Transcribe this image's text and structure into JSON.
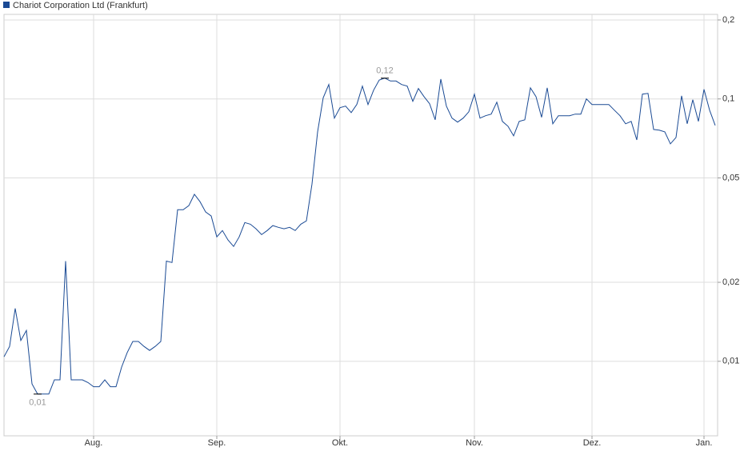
{
  "chart_data": {
    "type": "line",
    "legend": "top-left",
    "log_y": true,
    "grid": true,
    "series": [
      {
        "name": "Chariot Corporation Ltd (Frankfurt)",
        "color": "#1a4a94",
        "values": [
          0.0104,
          0.0114,
          0.0159,
          0.012,
          0.0131,
          0.0082,
          0.0075,
          0.0075,
          0.0075,
          0.0085,
          0.0085,
          0.0241,
          0.0085,
          0.0085,
          0.0085,
          0.0083,
          0.008,
          0.008,
          0.0085,
          0.008,
          0.008,
          0.0095,
          0.0108,
          0.0119,
          0.0119,
          0.0114,
          0.011,
          0.0114,
          0.0119,
          0.0241,
          0.0238,
          0.0378,
          0.0378,
          0.0392,
          0.0433,
          0.0406,
          0.0371,
          0.0358,
          0.0298,
          0.0315,
          0.029,
          0.0274,
          0.0298,
          0.0338,
          0.0333,
          0.032,
          0.0304,
          0.0315,
          0.0329,
          0.0324,
          0.032,
          0.0324,
          0.0315,
          0.0333,
          0.0343,
          0.0474,
          0.0749,
          0.101,
          0.1135,
          0.0845,
          0.0926,
          0.0939,
          0.0887,
          0.0952,
          0.1119,
          0.0952,
          0.108,
          0.118,
          0.12,
          0.117,
          0.117,
          0.1135,
          0.1119,
          0.0979,
          0.1096,
          0.1021,
          0.0959,
          0.0833,
          0.119,
          0.0939,
          0.0845,
          0.0816,
          0.0845,
          0.0893,
          0.1043,
          0.0845,
          0.0863,
          0.0875,
          0.0972,
          0.0821,
          0.0787,
          0.0723,
          0.0821,
          0.0833,
          0.1103,
          0.1021,
          0.0851,
          0.1103,
          0.0804,
          0.0863,
          0.0863,
          0.0863,
          0.0875,
          0.0875,
          0.1,
          0.0952,
          0.0952,
          0.0952,
          0.0952,
          0.0906,
          0.0863,
          0.0804,
          0.0821,
          0.0698,
          0.1043,
          0.105,
          0.0765,
          0.076,
          0.0749,
          0.0674,
          0.0713,
          0.1028,
          0.0804,
          0.0993,
          0.0821,
          0.1088,
          0.0906,
          0.0793
        ]
      }
    ],
    "categories": [
      null,
      null,
      null,
      null,
      null,
      null,
      null,
      null,
      null,
      null,
      null,
      null,
      null,
      null,
      null,
      null,
      "Aug.",
      null,
      null,
      null,
      null,
      null,
      null,
      null,
      null,
      null,
      null,
      null,
      null,
      null,
      null,
      null,
      null,
      null,
      null,
      null,
      null,
      null,
      "Sep.",
      null,
      null,
      null,
      null,
      null,
      null,
      null,
      null,
      null,
      null,
      null,
      null,
      null,
      null,
      null,
      null,
      null,
      null,
      null,
      null,
      null,
      "Okt.",
      null,
      null,
      null,
      null,
      null,
      null,
      null,
      null,
      null,
      null,
      null,
      null,
      null,
      null,
      null,
      null,
      null,
      null,
      null,
      null,
      null,
      null,
      null,
      "Nov.",
      null,
      null,
      null,
      null,
      null,
      null,
      null,
      null,
      null,
      null,
      null,
      null,
      null,
      null,
      null,
      null,
      null,
      null,
      null,
      null,
      "Dez.",
      null,
      null,
      null,
      null,
      null,
      null,
      null,
      null,
      null,
      null,
      null,
      null,
      null,
      null,
      null,
      null,
      null,
      null,
      null,
      "Jan.",
      null,
      null
    ],
    "ylim": [
      0.0052,
      0.21
    ],
    "yticks": [
      {
        "value": 0.01,
        "label": "0,01"
      },
      {
        "value": 0.02,
        "label": "0,02"
      },
      {
        "value": 0.05,
        "label": "0,05"
      },
      {
        "value": 0.1,
        "label": "0,1"
      },
      {
        "value": 0.2,
        "label": "0,2"
      }
    ],
    "annotations": [
      {
        "value": 0.12,
        "label": "0,12"
      },
      {
        "value": 0.0075,
        "label": "0,01"
      }
    ]
  }
}
